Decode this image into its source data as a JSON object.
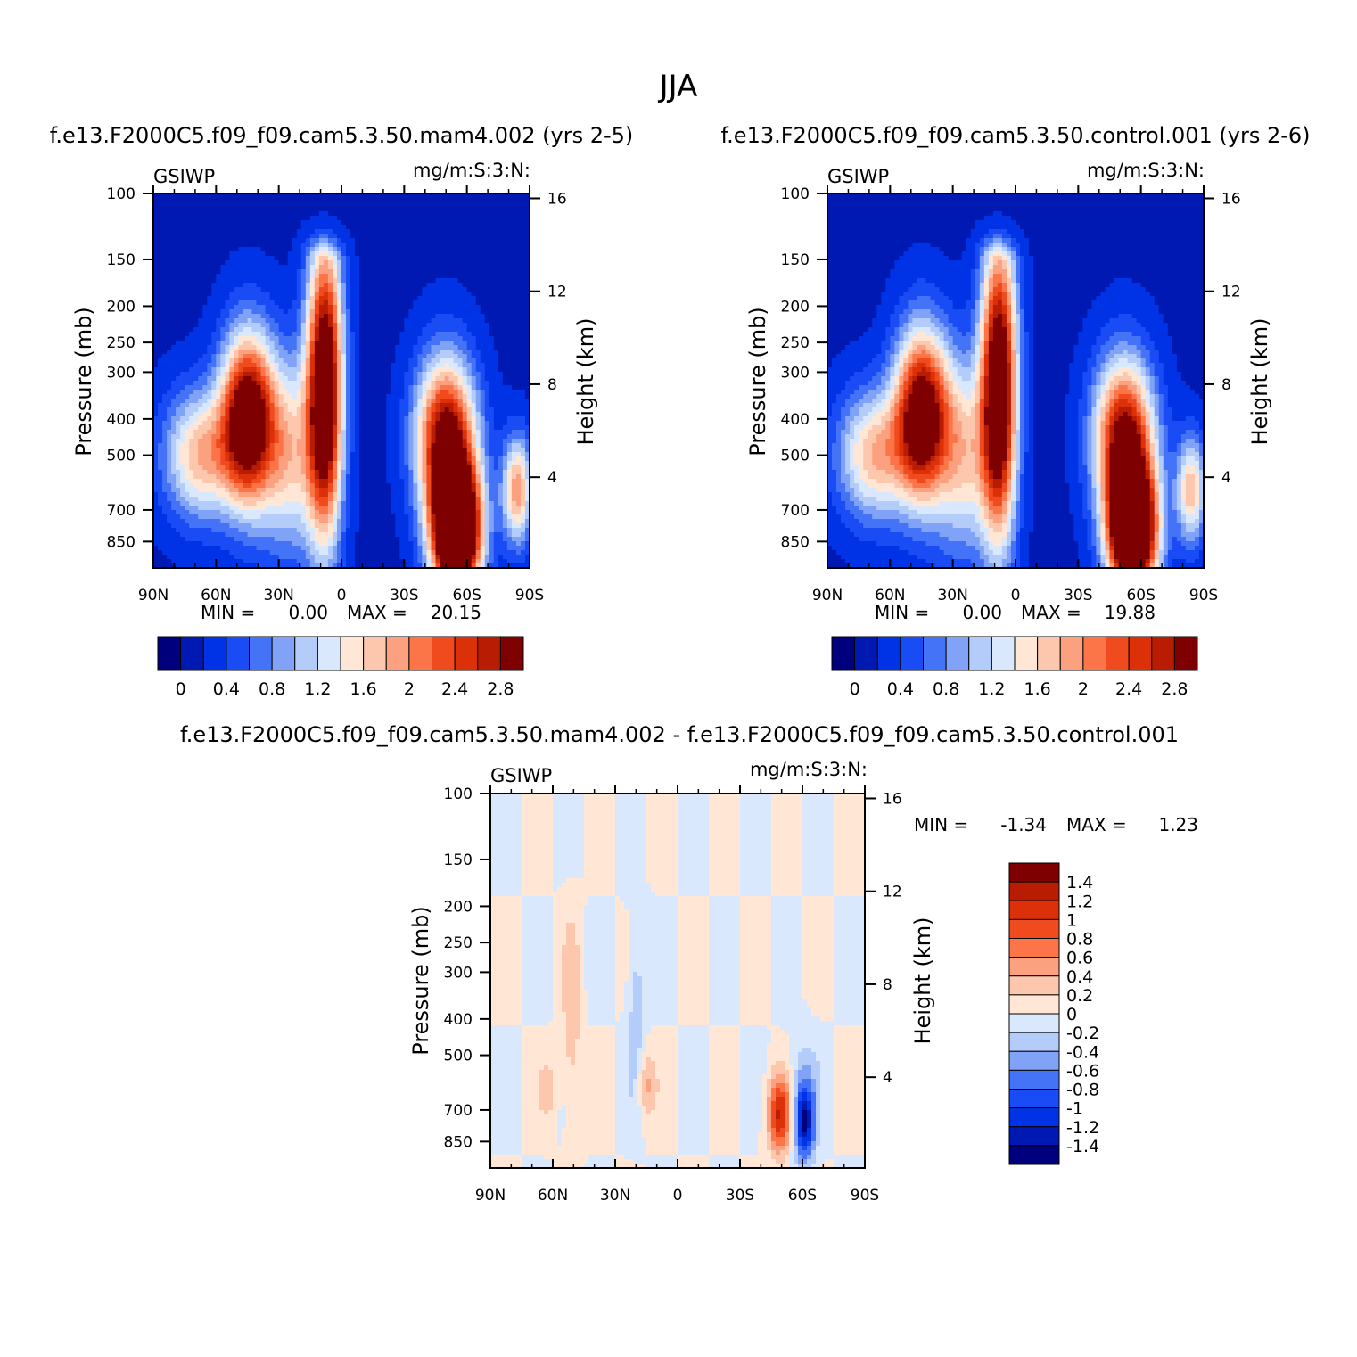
{
  "figure": {
    "title": "JJA"
  },
  "scale": {
    "abs_colors": [
      "#00007f",
      "#0019b2",
      "#0033e5",
      "#1a4cf5",
      "#4473f7",
      "#80a3f7",
      "#b3ccf9",
      "#d9e8fc",
      "#ffe6d5",
      "#fdc7ad",
      "#fca17f",
      "#fb7548",
      "#f04a1f",
      "#dc3008",
      "#b81d04",
      "#7f0000"
    ],
    "diff_colors": [
      "#00007f",
      "#0019b2",
      "#0033e5",
      "#1a4cf5",
      "#4473f7",
      "#80a3f7",
      "#b3ccf9",
      "#d9e8fc",
      "#ffe6d5",
      "#fdc7ad",
      "#fca17f",
      "#fb7548",
      "#f04a1f",
      "#dc3008",
      "#b81d04",
      "#7f0000"
    ]
  },
  "chart_data": [
    {
      "type": "heatmap",
      "title": "f.e13.F2000C5.f09_f09.cam5.3.50.mam4.002 (yrs 2-5)",
      "left_label": "GSIWP",
      "right_label": "mg/m:S:3:N:",
      "xlabel": "",
      "ylabel": "Pressure (mb)",
      "y2label": "Height (km)",
      "xticks": [
        "90N",
        "60N",
        "30N",
        "0",
        "30S",
        "60S",
        "90S"
      ],
      "xlim": [
        90,
        -90
      ],
      "yticks": [
        100,
        150,
        200,
        250,
        300,
        400,
        500,
        700,
        850
      ],
      "ylim": [
        100,
        1000
      ],
      "yscale": "log",
      "y2ticks": [
        16,
        12,
        8,
        4
      ],
      "min_label": "MIN =",
      "min_value": "0.00",
      "max_label": "MAX =",
      "max_value": "20.15",
      "levels": [
        0,
        0.2,
        0.4,
        0.6,
        0.8,
        1,
        1.2,
        1.4,
        1.6,
        1.8,
        2,
        2.2,
        2.4,
        2.6,
        2.8
      ],
      "colorbar_labels": [
        "0",
        "0.4",
        "0.8",
        "1.2",
        "1.6",
        "2",
        "2.4",
        "2.8"
      ],
      "features": [
        {
          "lat": 45,
          "p": 400,
          "amp": 3.2,
          "slat": 9,
          "slogp": 0.16
        },
        {
          "lat": 8,
          "p": 330,
          "amp": 3.4,
          "slat": 6,
          "slogp": 0.28
        },
        {
          "lat": 68,
          "p": 500,
          "amp": 1.6,
          "slat": 12,
          "slogp": 0.12
        },
        {
          "lat": 25,
          "p": 500,
          "amp": 1.4,
          "slat": 10,
          "slogp": 0.18
        },
        {
          "lat": -55,
          "p": 800,
          "amp": 4.8,
          "slat": 8,
          "slogp": 0.12
        },
        {
          "lat": -50,
          "p": 450,
          "amp": 2.9,
          "slat": 10,
          "slogp": 0.15
        },
        {
          "lat": -84,
          "p": 620,
          "amp": 1.8,
          "slat": 5,
          "slogp": 0.1
        }
      ]
    },
    {
      "type": "heatmap",
      "title": "f.e13.F2000C5.f09_f09.cam5.3.50.control.001 (yrs 2-6)",
      "left_label": "GSIWP",
      "right_label": "mg/m:S:3:N:",
      "xlabel": "",
      "ylabel": "Pressure (mb)",
      "y2label": "Height (km)",
      "xticks": [
        "90N",
        "60N",
        "30N",
        "0",
        "30S",
        "60S",
        "90S"
      ],
      "xlim": [
        90,
        -90
      ],
      "yticks": [
        100,
        150,
        200,
        250,
        300,
        400,
        500,
        700,
        850
      ],
      "ylim": [
        100,
        1000
      ],
      "yscale": "log",
      "y2ticks": [
        16,
        12,
        8,
        4
      ],
      "min_label": "MIN =",
      "min_value": "0.00",
      "max_label": "MAX =",
      "max_value": "19.88",
      "levels": [
        0,
        0.2,
        0.4,
        0.6,
        0.8,
        1,
        1.2,
        1.4,
        1.6,
        1.8,
        2,
        2.2,
        2.4,
        2.6,
        2.8
      ],
      "colorbar_labels": [
        "0",
        "0.4",
        "0.8",
        "1.2",
        "1.6",
        "2",
        "2.4",
        "2.8"
      ],
      "features": [
        {
          "lat": 45,
          "p": 390,
          "amp": 3.1,
          "slat": 9,
          "slogp": 0.16
        },
        {
          "lat": 8,
          "p": 330,
          "amp": 3.4,
          "slat": 6,
          "slogp": 0.28
        },
        {
          "lat": 68,
          "p": 500,
          "amp": 1.6,
          "slat": 12,
          "slogp": 0.12
        },
        {
          "lat": 25,
          "p": 500,
          "amp": 1.4,
          "slat": 10,
          "slogp": 0.18
        },
        {
          "lat": -56,
          "p": 800,
          "amp": 4.6,
          "slat": 8,
          "slogp": 0.12
        },
        {
          "lat": -52,
          "p": 450,
          "amp": 2.8,
          "slat": 10,
          "slogp": 0.15
        },
        {
          "lat": -84,
          "p": 620,
          "amp": 1.6,
          "slat": 5,
          "slogp": 0.1
        }
      ]
    },
    {
      "type": "heatmap",
      "title": "f.e13.F2000C5.f09_f09.cam5.3.50.mam4.002 - f.e13.F2000C5.f09_f09.cam5.3.50.control.001",
      "left_label": "GSIWP",
      "right_label": "mg/m:S:3:N:",
      "xlabel": "",
      "ylabel": "Pressure (mb)",
      "y2label": "Height (km)",
      "xticks": [
        "90N",
        "60N",
        "30N",
        "0",
        "30S",
        "60S",
        "90S"
      ],
      "xlim": [
        90,
        -90
      ],
      "yticks": [
        100,
        150,
        200,
        250,
        300,
        400,
        500,
        700,
        850
      ],
      "ylim": [
        100,
        1000
      ],
      "yscale": "log",
      "y2ticks": [
        16,
        12,
        8,
        4
      ],
      "min_label": "MIN =",
      "min_value": "-1.34",
      "max_label": "MAX =",
      "max_value": "1.23",
      "levels": [
        -1.4,
        -1.2,
        -1,
        -0.8,
        -0.6,
        -0.4,
        -0.2,
        0,
        0.2,
        0.4,
        0.6,
        0.8,
        1,
        1.2,
        1.4
      ],
      "colorbar_labels": [
        "1.4",
        "1.2",
        "1",
        "0.8",
        "0.6",
        "0.4",
        "0.2",
        "0",
        "-0.2",
        "-0.4",
        "-0.6",
        "-0.8",
        "-1",
        "-1.2",
        "-1.4"
      ],
      "features": [
        {
          "lat": -49,
          "p": 720,
          "amp": 1.2,
          "slat": 4,
          "slogp": 0.07
        },
        {
          "lat": -61,
          "p": 760,
          "amp": -1.3,
          "slat": 3.5,
          "slogp": 0.07
        },
        {
          "lat": 51,
          "p": 420,
          "amp": 0.35,
          "slat": 3,
          "slogp": 0.2
        },
        {
          "lat": 15,
          "p": 600,
          "amp": 0.45,
          "slat": 3,
          "slogp": 0.06
        },
        {
          "lat": 20,
          "p": 360,
          "amp": -0.35,
          "slat": 3,
          "slogp": 0.18
        },
        {
          "lat": 62,
          "p": 620,
          "amp": 0.25,
          "slat": 3,
          "slogp": 0.06
        },
        {
          "lat": -60,
          "p": 600,
          "amp": -0.3,
          "slat": 5,
          "slogp": 0.1
        }
      ],
      "pattern_amp": 0.13
    }
  ]
}
